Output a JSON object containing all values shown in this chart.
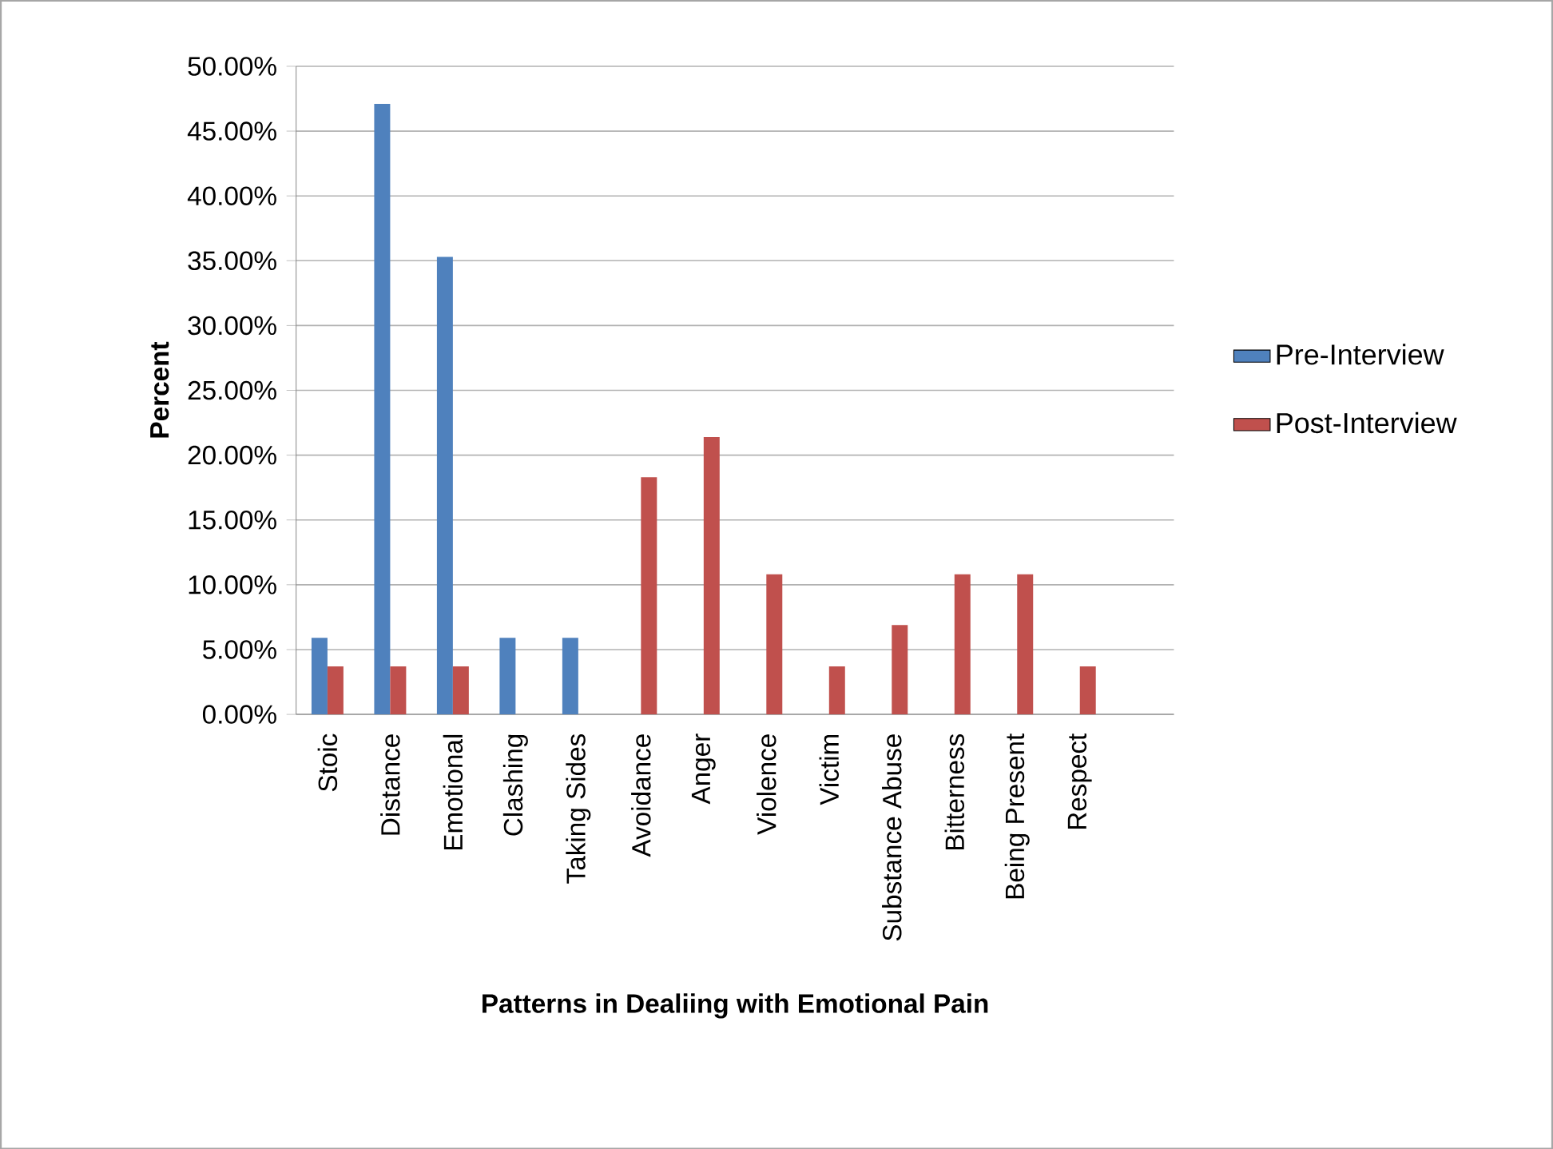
{
  "chart_data": {
    "type": "bar",
    "xlabel": "Patterns in Dealiing with Emotional Pain",
    "ylabel": "Percent",
    "categories": [
      "Stoic",
      "Distance",
      "Emotional",
      "Clashing",
      "Taking Sides",
      "Avoidance",
      "Anger",
      "Violence",
      "Victim",
      "Substance Abuse",
      "Bitterness",
      "Being Present",
      "Respect",
      null
    ],
    "series": [
      {
        "name": "Pre-Interview",
        "color": "#4f81bd",
        "values": [
          5.9,
          47.1,
          35.3,
          5.9,
          5.9,
          null,
          null,
          null,
          null,
          null,
          null,
          null,
          null,
          null
        ]
      },
      {
        "name": "Post-Interview",
        "color": "#c0504d",
        "values": [
          3.7,
          3.7,
          3.7,
          null,
          null,
          18.3,
          21.4,
          10.8,
          3.7,
          6.9,
          10.8,
          10.8,
          3.7,
          null
        ]
      }
    ],
    "ylim": [
      0,
      50
    ],
    "yticks": [
      {
        "value": 0,
        "label": "0.00%"
      },
      {
        "value": 5,
        "label": "5.00%"
      },
      {
        "value": 10,
        "label": "10.00%"
      },
      {
        "value": 15,
        "label": "15.00%"
      },
      {
        "value": 20,
        "label": "20.00%"
      },
      {
        "value": 25,
        "label": "25.00%"
      },
      {
        "value": 30,
        "label": "30.00%"
      },
      {
        "value": 35,
        "label": "35.00%"
      },
      {
        "value": 40,
        "label": "40.00%"
      },
      {
        "value": 45,
        "label": "45.00%"
      },
      {
        "value": 50,
        "label": "50.00%"
      }
    ],
    "grid": "y",
    "legend": "right"
  }
}
